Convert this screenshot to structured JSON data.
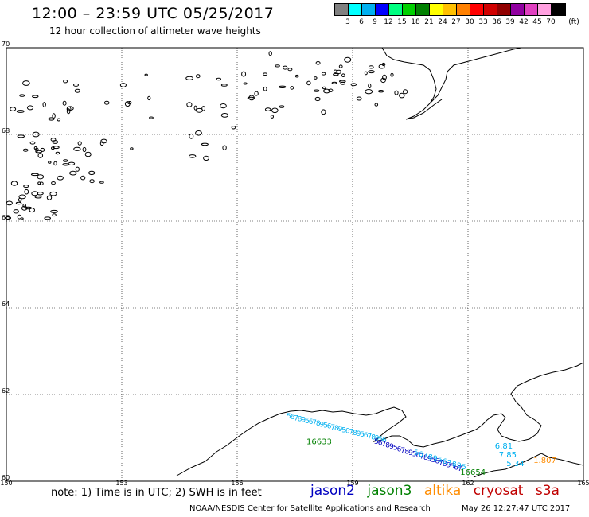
{
  "header": {
    "title": "12:00 – 23:59 UTC 05/25/2017",
    "subtitle": "12 hour collection of altimeter wave heights"
  },
  "legend": {
    "unit": "(ft)",
    "ticks": [
      "3",
      "6",
      "9",
      "12",
      "15",
      "18",
      "21",
      "24",
      "27",
      "30",
      "33",
      "36",
      "39",
      "42",
      "45",
      "70"
    ],
    "colors": [
      "#808080",
      "#00ffff",
      "#00b0f0",
      "#0000ff",
      "#00ff80",
      "#00d000",
      "#008000",
      "#ffff00",
      "#ffc000",
      "#ff8000",
      "#ff0000",
      "#d00000",
      "#900000",
      "#9000a0",
      "#e040c0",
      "#ffa0e0",
      "#000000"
    ]
  },
  "axes": {
    "lat_labels": [
      "70",
      "68",
      "66",
      "64",
      "62",
      "60"
    ],
    "lon_labels": [
      "150",
      "153",
      "156",
      "159",
      "162",
      "165"
    ]
  },
  "tracks": {
    "jason2_color": "#0000c0",
    "jason3_color": "#008000",
    "altika_color": "#ff8c00",
    "labels": [
      {
        "text": "6.81",
        "lon": 162.7,
        "lat": 60.75,
        "color": "#00b0f0"
      },
      {
        "text": "7.85",
        "lon": 162.8,
        "lat": 60.55,
        "color": "#00b0f0"
      },
      {
        "text": "5.34",
        "lon": 163.0,
        "lat": 60.35,
        "color": "#00b0f0"
      },
      {
        "text": "1.807",
        "lon": 163.7,
        "lat": 60.42,
        "color": "#ff8c00"
      },
      {
        "text": "16633",
        "lon": 157.8,
        "lat": 60.85,
        "color": "#008000"
      },
      {
        "text": "16654",
        "lon": 161.8,
        "lat": 60.15,
        "color": "#008000"
      }
    ]
  },
  "notes": {
    "note": "note:  1) Time is in UTC;  2) SWH is in feet",
    "sat_jason2": "jason2",
    "sat_jason3": "jason3",
    "sat_altika": "altika",
    "sat_cryosat": "cryosat",
    "sat_s3a": "s3a",
    "sat_colors": {
      "jason2": "#0000c0",
      "jason3": "#008000",
      "altika": "#ff8c00",
      "cryosat": "#c00000",
      "s3a": "#c00000"
    },
    "credit": "NOAA/NESDIS Center for Satellite Applications and Research",
    "timestamp": "May 26 12:27:47 UTC 2017"
  }
}
